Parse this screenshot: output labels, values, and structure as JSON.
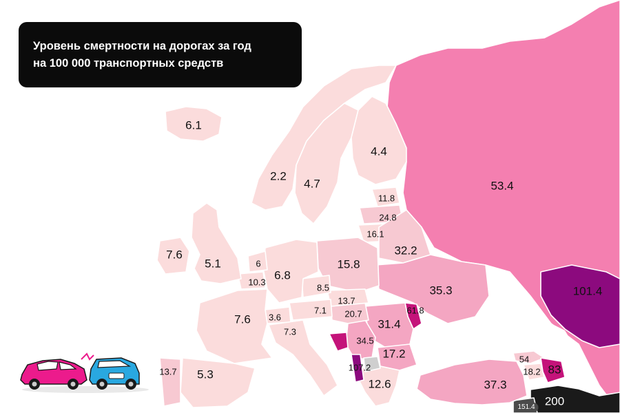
{
  "title": {
    "line1": "Уровень смертности на дорогах за год",
    "line2": "на 100 000 транспортных средств"
  },
  "colors": {
    "lightest": "#fbdcdc",
    "light": "#f7c9d2",
    "medium": "#f4a6c2",
    "strong": "#f487b8",
    "russia": "#f47fb0",
    "dark": "#c4137a",
    "darkest": "#8c0a7e",
    "grey": "#cfcfcf",
    "black": "#1a1a1a"
  },
  "icons": {
    "illustration": "car-crash-icon"
  },
  "values": {
    "iceland": "6.1",
    "norway": "2.2",
    "sweden": "4.7",
    "finland": "4.4",
    "russia": "53.4",
    "estonia": "11.8",
    "latvia": "24.8",
    "lithuania": "16.1",
    "belarus": "32.2",
    "ireland": "7.6",
    "uk": "5.1",
    "netherlands": "6",
    "belgium": "10.3",
    "germany": "6.8",
    "poland": "15.8",
    "ukraine": "35.3",
    "czechia": "8.5",
    "slovakia": "13.7",
    "austria": "7.1",
    "hungary": "20.7",
    "moldova": "61.8",
    "romania": "31.4",
    "france": "7.6",
    "switzerland": "3.6",
    "italy": "7.3",
    "serbia": "34.5",
    "albania": "107.2",
    "bulgaria": "17.2",
    "greece": "12.6",
    "turkey": "37.3",
    "portugal": "13.7",
    "spain": "5.3",
    "kazakhstan": "101.4",
    "georgia": "54",
    "armenia": "18.2",
    "azerbaijan": "83",
    "iran": "200",
    "syria": "151.4"
  }
}
